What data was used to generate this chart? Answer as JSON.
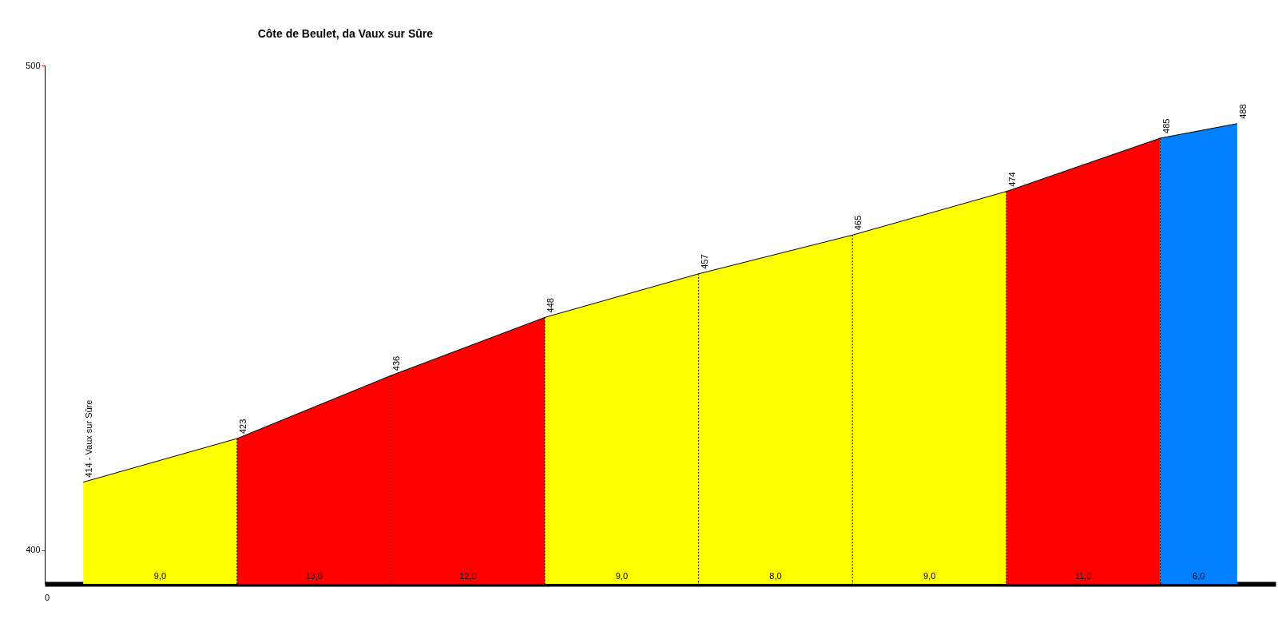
{
  "chart_data": {
    "type": "area",
    "title": "Côte de Beulet, da Vaux sur Sûre",
    "categories": [
      null,
      null,
      null,
      null,
      null,
      null,
      null,
      null,
      null,
      null,
      null,
      null,
      null,
      null,
      null,
      null
    ],
    "ylim": [
      393,
      500
    ],
    "yticks": [
      400,
      500
    ],
    "series": [
      {
        "color": "#ffff00",
        "values": [
          414,
          418.5,
          423,
          null,
          null,
          null,
          null,
          null,
          null,
          null,
          null,
          null,
          null,
          null,
          null,
          null
        ],
        "value_labels": [
          "414 - Vaux sur Sûre",
          null,
          "423",
          null,
          null,
          null,
          null,
          null,
          null,
          null,
          null,
          null,
          null,
          null,
          null,
          null
        ]
      },
      {
        "color": "#ff0000",
        "values": [
          null,
          null,
          423,
          429.5,
          436,
          null,
          null,
          null,
          null,
          null,
          null,
          null,
          null,
          null,
          null,
          null
        ],
        "value_labels": [
          null,
          null,
          null,
          null,
          "436",
          null,
          null,
          null,
          null,
          null,
          null,
          null,
          null,
          null,
          null,
          null
        ]
      },
      {
        "color": "#ff0000",
        "values": [
          null,
          null,
          null,
          null,
          436,
          442,
          448,
          null,
          null,
          null,
          null,
          null,
          null,
          null,
          null,
          null
        ],
        "value_labels": [
          null,
          null,
          null,
          null,
          null,
          null,
          "448",
          null,
          null,
          null,
          null,
          null,
          null,
          null,
          null,
          null
        ]
      },
      {
        "color": "#ffff00",
        "values": [
          null,
          null,
          null,
          null,
          null,
          null,
          448,
          452.5,
          457,
          null,
          null,
          null,
          null,
          null,
          null,
          null
        ],
        "value_labels": [
          null,
          null,
          null,
          null,
          null,
          null,
          null,
          null,
          "457",
          null,
          null,
          null,
          null,
          null,
          null,
          null
        ]
      },
      {
        "color": "#ffff00",
        "values": [
          null,
          null,
          null,
          null,
          null,
          null,
          null,
          null,
          457,
          461,
          465,
          null,
          null,
          null,
          null,
          null
        ],
        "value_labels": [
          null,
          null,
          null,
          null,
          null,
          null,
          null,
          null,
          null,
          null,
          "465",
          null,
          null,
          null,
          null,
          null
        ]
      },
      {
        "color": "#ffff00",
        "values": [
          null,
          null,
          null,
          null,
          null,
          null,
          null,
          null,
          null,
          null,
          465,
          469.5,
          474,
          null,
          null,
          null
        ],
        "value_labels": [
          null,
          null,
          null,
          null,
          null,
          null,
          null,
          null,
          null,
          null,
          null,
          null,
          "474",
          null,
          null,
          null
        ]
      },
      {
        "color": "#ff0000",
        "values": [
          null,
          null,
          null,
          null,
          null,
          null,
          null,
          null,
          null,
          null,
          null,
          null,
          474,
          479.5,
          485,
          null
        ],
        "value_labels": [
          null,
          null,
          null,
          null,
          null,
          null,
          null,
          null,
          null,
          null,
          null,
          null,
          null,
          null,
          "485",
          null
        ]
      },
      {
        "color": "#0080ff",
        "values": [
          null,
          null,
          null,
          null,
          null,
          null,
          null,
          null,
          null,
          null,
          null,
          null,
          null,
          null,
          485,
          488
        ],
        "value_labels": [
          null,
          null,
          null,
          null,
          null,
          null,
          null,
          null,
          null,
          null,
          null,
          null,
          null,
          null,
          null,
          "488"
        ]
      }
    ],
    "annotations": [
      "0",
      "9,0",
      "13,0",
      "12,0",
      "9,0",
      "8,0",
      "9,0",
      "11,0",
      "6,0"
    ]
  }
}
